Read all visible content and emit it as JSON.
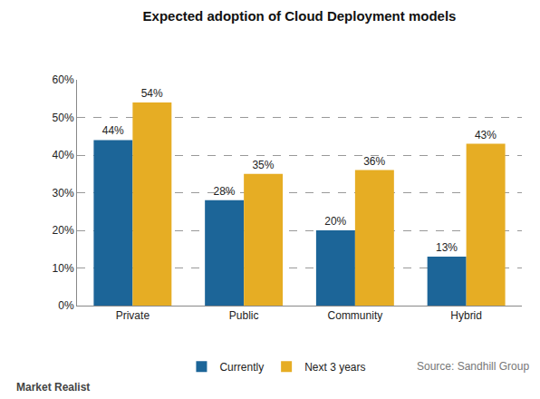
{
  "chart_data": {
    "type": "bar",
    "title": "Expected adoption of Cloud Deployment models",
    "categories": [
      "Private",
      "Public",
      "Community",
      "Hybrid"
    ],
    "series": [
      {
        "name": "Currently",
        "color": "#1c6598",
        "values": [
          44,
          28,
          20,
          13
        ],
        "value_labels": [
          "44%",
          "28%",
          "20%",
          "13%"
        ]
      },
      {
        "name": "Next 3 years",
        "color": "#e6ad24",
        "values": [
          54,
          35,
          36,
          43
        ],
        "value_labels": [
          "54%",
          "35%",
          "36%",
          "43%"
        ]
      }
    ],
    "ylim": [
      0,
      60
    ],
    "yticks": [
      {
        "value": 0,
        "label": "0%"
      },
      {
        "value": 10,
        "label": "10%"
      },
      {
        "value": 20,
        "label": "20%"
      },
      {
        "value": 30,
        "label": "30%"
      },
      {
        "value": 40,
        "label": "40%"
      },
      {
        "value": 50,
        "label": "50%"
      },
      {
        "value": 60,
        "label": "60%"
      }
    ],
    "grid": true,
    "data_labels": true,
    "legend": "bottom",
    "annotations": [
      "Source: Sandhill Group",
      "Market Realist"
    ]
  }
}
